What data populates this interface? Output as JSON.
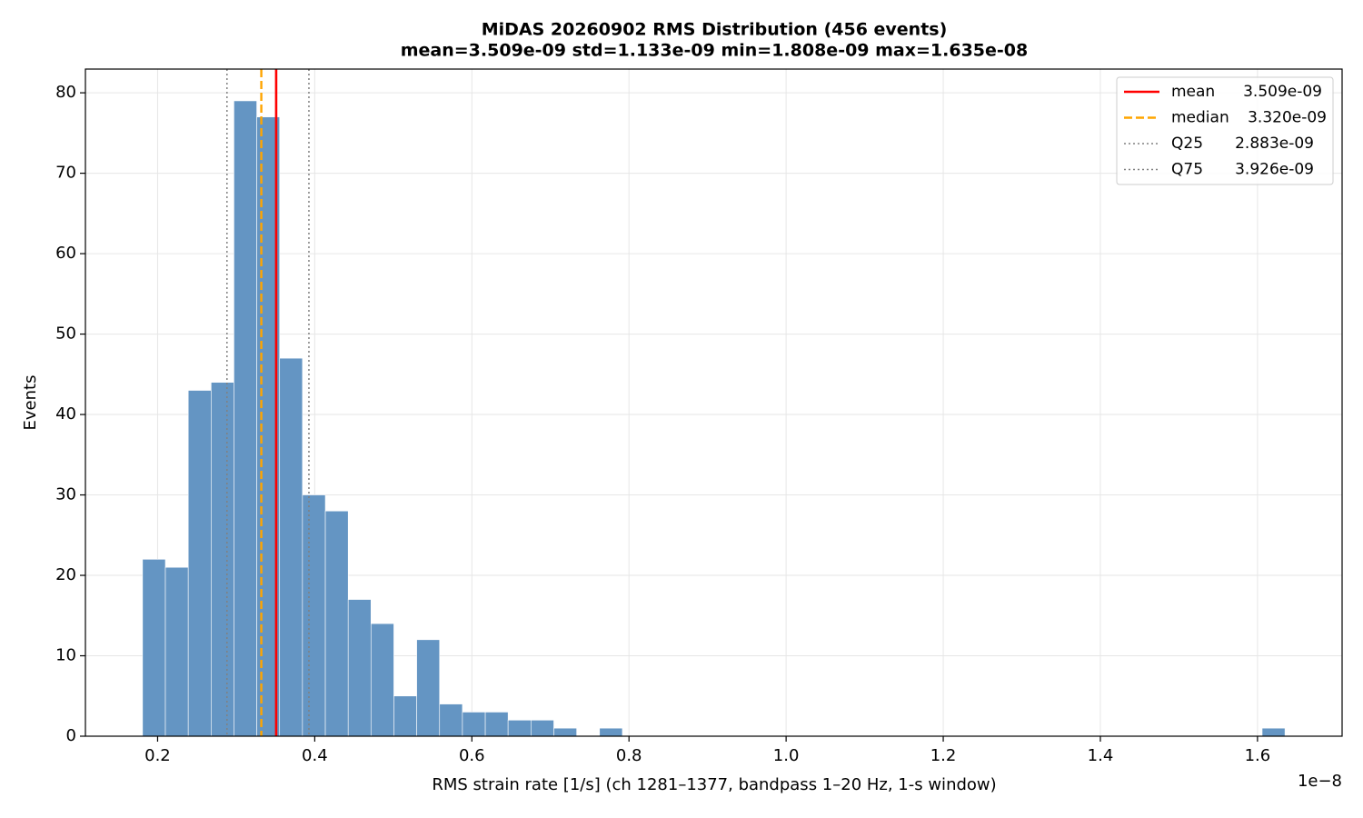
{
  "chart_data": {
    "type": "histogram",
    "title": "MiDAS 20260902  RMS Distribution  (456 events)",
    "subtitle": "mean=3.509e-09  std=1.133e-09  min=1.808e-09  max=1.635e-08",
    "xlabel": "RMS strain rate [1/s]  (ch 1281–1377, bandpass 1–20 Hz, 1-s window)",
    "ylabel": "Events",
    "x_offset": "1e−8",
    "bins": [
      0.1808,
      0.2099,
      0.239,
      0.2681,
      0.2971,
      0.3262,
      0.3553,
      0.3844,
      0.4135,
      0.4426,
      0.4716,
      0.5007,
      0.5298,
      0.5589,
      0.588,
      0.6171,
      0.6461,
      0.6752,
      0.7043,
      0.7334,
      0.7625,
      0.7916,
      0.8206,
      0.8497,
      0.8788,
      0.9079,
      0.937,
      0.9661,
      0.9952,
      1.0242,
      1.0533,
      1.0824,
      1.1115,
      1.1406,
      1.1697,
      1.1987,
      1.2278,
      1.2569,
      1.286,
      1.3151,
      1.3442,
      1.3732,
      1.4023,
      1.4314,
      1.4605,
      1.4896,
      1.5187,
      1.5477,
      1.5768,
      1.6059,
      1.635
    ],
    "values": [
      22,
      21,
      43,
      44,
      79,
      77,
      47,
      30,
      28,
      17,
      14,
      5,
      12,
      4,
      3,
      3,
      2,
      2,
      1,
      0,
      1,
      0,
      0,
      0,
      0,
      0,
      0,
      0,
      0,
      0,
      0,
      0,
      0,
      0,
      0,
      0,
      0,
      0,
      0,
      0,
      0,
      0,
      0,
      0,
      0,
      0,
      0,
      0,
      0,
      1
    ],
    "color": "#6495c3",
    "lines": [
      {
        "name": "mean",
        "value": 0.3509,
        "label": "3.509e-09",
        "color": "#ff0000",
        "style": "solid"
      },
      {
        "name": "median",
        "value": 0.332,
        "label": "3.320e-09",
        "color": "#ffa500",
        "style": "dashed"
      },
      {
        "name": "Q25",
        "value": 0.2883,
        "label": "2.883e-09",
        "color": "#808080",
        "style": "dotted"
      },
      {
        "name": "Q75",
        "value": 0.3926,
        "label": "3.926e-09",
        "color": "#808080",
        "style": "dotted"
      }
    ],
    "xlim": [
      0.1081,
      1.7077
    ],
    "ylim": [
      0,
      82.95
    ],
    "xticks": [
      0.2,
      0.4,
      0.6,
      0.8,
      {
        "value": 1,
        "label": "1.0"
      },
      1.2,
      1.4,
      1.6
    ],
    "yticks": [
      0,
      10,
      20,
      30,
      40,
      50,
      60,
      70,
      80
    ],
    "grid": true,
    "legend": "upper right"
  }
}
